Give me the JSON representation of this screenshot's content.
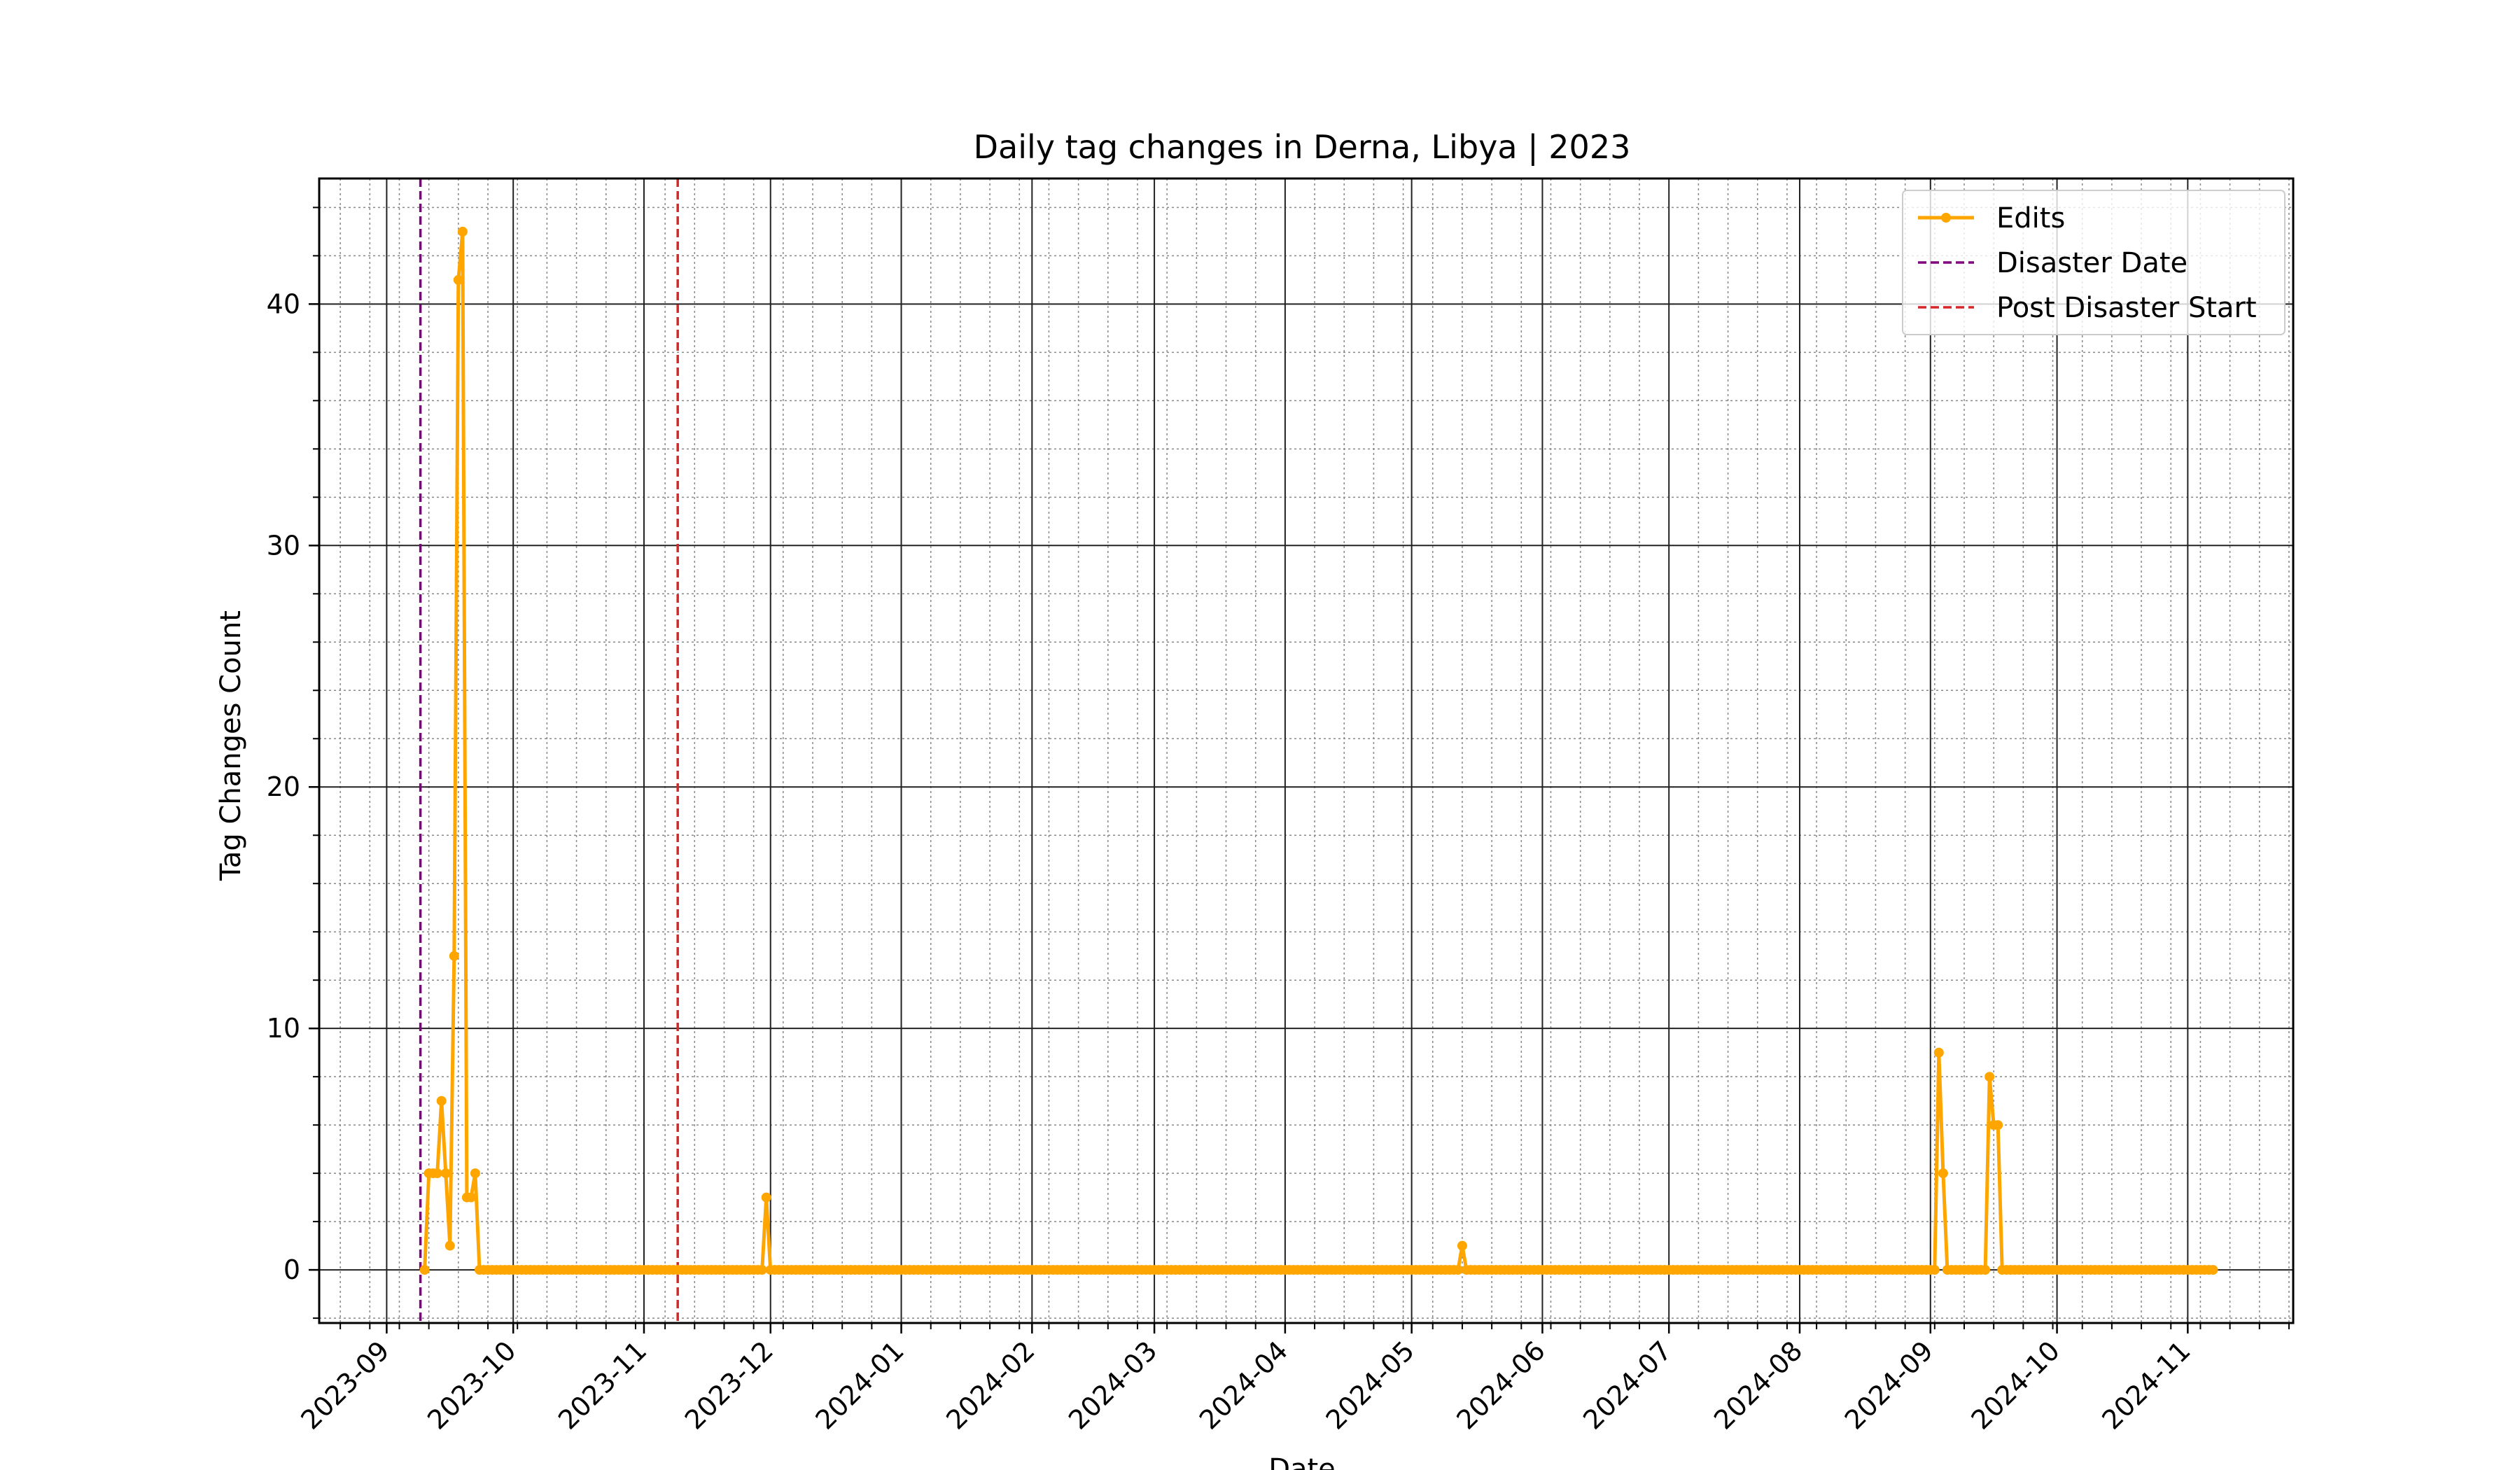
{
  "chart_data": {
    "type": "line",
    "title": "Daily tag changes in Derna, Libya | 2023",
    "xlabel": "Date",
    "ylabel": "Tag Changes Count",
    "xlim": [
      "2023-08-16",
      "2024-11-26"
    ],
    "ylim": [
      -2.2,
      45.2
    ],
    "x_tick_labels": [
      "2023-09",
      "2023-10",
      "2023-11",
      "2023-12",
      "2024-01",
      "2024-02",
      "2024-03",
      "2024-04",
      "2024-05",
      "2024-06",
      "2024-07",
      "2024-08",
      "2024-09",
      "2024-10",
      "2024-11"
    ],
    "y_ticks": [
      0,
      10,
      20,
      30,
      40
    ],
    "grid": true,
    "legend": {
      "placement": "top-right",
      "entries": [
        "Edits",
        "Disaster Date",
        "Post Disaster Start"
      ]
    },
    "colors": {
      "edits": "#ffa500",
      "disaster": "#800080",
      "post": "#d62728"
    },
    "series": [
      {
        "name": "Edits",
        "start_date": "2023-09-10",
        "end_date": "2024-11-07",
        "baseline_value": 0,
        "points": [
          [
            "2023-09-10",
            0
          ],
          [
            "2023-09-11",
            4
          ],
          [
            "2023-09-12",
            4
          ],
          [
            "2023-09-13",
            4
          ],
          [
            "2023-09-14",
            7
          ],
          [
            "2023-09-15",
            4
          ],
          [
            "2023-09-16",
            1
          ],
          [
            "2023-09-17",
            13
          ],
          [
            "2023-09-18",
            41
          ],
          [
            "2023-09-19",
            43
          ],
          [
            "2023-09-20",
            3
          ],
          [
            "2023-09-21",
            3
          ],
          [
            "2023-09-22",
            4
          ],
          [
            "2023-09-23",
            0
          ],
          [
            "2023-11-30",
            3
          ],
          [
            "2024-05-13",
            1
          ],
          [
            "2024-09-03",
            9
          ],
          [
            "2024-09-04",
            4
          ],
          [
            "2024-09-15",
            8
          ],
          [
            "2024-09-16",
            6
          ],
          [
            "2024-09-17",
            6
          ]
        ]
      }
    ],
    "vlines": [
      {
        "name": "Disaster Date",
        "date": "2023-09-09"
      },
      {
        "name": "Post Disaster Start",
        "date": "2023-11-09"
      }
    ]
  }
}
